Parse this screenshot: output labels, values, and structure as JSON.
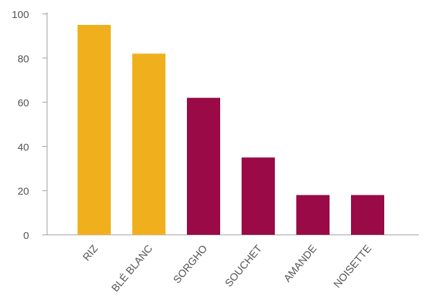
{
  "chart_data": {
    "type": "bar",
    "categories": [
      "RIZ",
      "BLÉ BLANC",
      "SORGHO",
      "SOUCHET",
      "AMANDE",
      "NOISETTE"
    ],
    "values": [
      95,
      82,
      62,
      35,
      18,
      18
    ],
    "colors": [
      "#F0B01E",
      "#F0B01E",
      "#990A46",
      "#990A46",
      "#990A46",
      "#990A46"
    ],
    "ylim": [
      0,
      100
    ],
    "yticks": [
      0,
      20,
      40,
      60,
      80,
      100
    ],
    "ytick_labels": [
      "0",
      "20",
      "40",
      "60",
      "80",
      "100"
    ],
    "title": "",
    "xlabel": "",
    "ylabel": "",
    "grid": false,
    "axis_color": "#9a9a9a"
  }
}
